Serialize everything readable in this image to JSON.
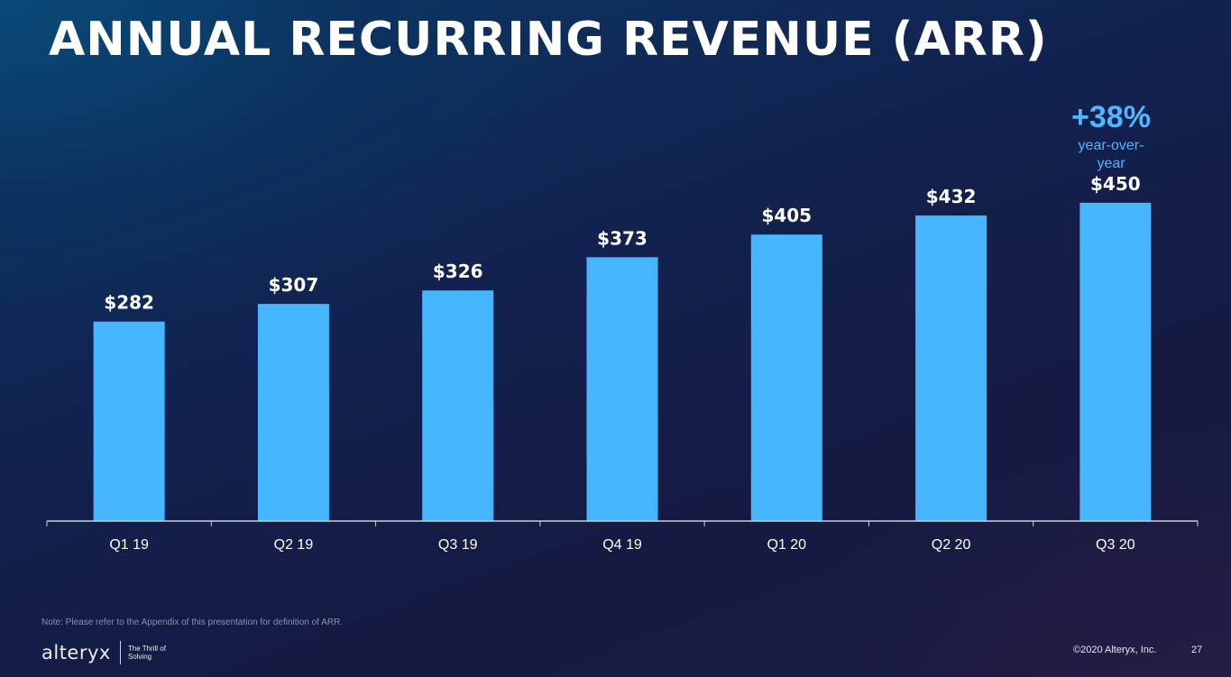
{
  "slide": {
    "title": "ANNUAL RECURRING REVENUE (ARR)",
    "growth": {
      "value": "+38%",
      "label": "year-over-year"
    },
    "note": "Note: Please refer to the Appendix of this presentation for definition of  ARR.",
    "logo": {
      "wordmark": "alteryx",
      "tagline": "The Thrill of Solving"
    },
    "copyright": "©2020 Alteryx, Inc.",
    "page_number": "27"
  },
  "colors": {
    "bar": "#45b6ff",
    "accent": "#4db8ff",
    "text": "#ffffff"
  },
  "chart_data": {
    "type": "bar",
    "categories": [
      "Q1 19",
      "Q2 19",
      "Q3 19",
      "Q4 19",
      "Q1 20",
      "Q2 20",
      "Q3 20"
    ],
    "values": [
      282,
      307,
      326,
      373,
      405,
      432,
      450
    ],
    "value_labels": [
      "$282",
      "$307",
      "$326",
      "$373",
      "$405",
      "$432",
      "$450"
    ],
    "title": "",
    "xlabel": "",
    "ylabel": "",
    "ylim": [
      0,
      520
    ],
    "grid": false,
    "legend": "none"
  }
}
